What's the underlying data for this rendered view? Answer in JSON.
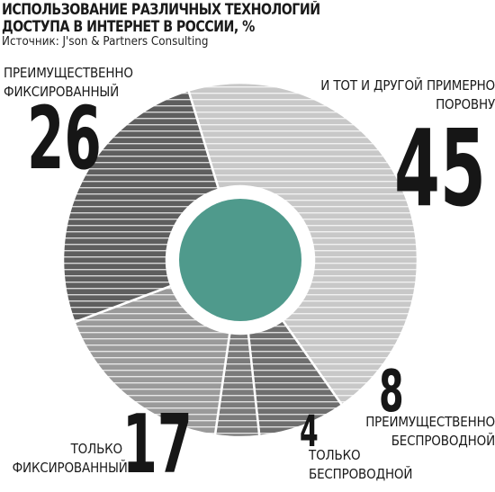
{
  "chart_data": {
    "type": "pie",
    "title": [
      "ИСПОЛЬЗОВАНИЕ РАЗЛИЧНЫХ ТЕХНОЛОГИЙ",
      "ДОСТУПА В ИНТЕРНЕТ В РОССИИ, %"
    ],
    "source": "Источник: J'son & Partners Consulting",
    "donut": true,
    "center_color": "#4f9a8c",
    "slices": [
      {
        "value": 45,
        "label": [
          "И ТОТ И ДРУГОЙ ПРИМЕРНО",
          "ПОРОВНУ"
        ],
        "fill": "#c8c8c8"
      },
      {
        "value": 8,
        "label": [
          "ПРЕИМУЩЕСТВЕННО",
          "БЕСПРОВОДНОЙ"
        ],
        "fill": "#6e6e6e"
      },
      {
        "value": 4,
        "label": [
          "ТОЛЬКО",
          "БЕСПРОВОДНОЙ"
        ],
        "fill": "#7a7a7a"
      },
      {
        "value": 17,
        "label": [
          "ТОЛЬКО",
          "ФИКСИРОВАННЫЙ"
        ],
        "fill": "#9a9a9a"
      },
      {
        "value": 26,
        "label": [
          "ПРЕИМУЩЕСТВЕННО",
          "ФИКСИРОВАННЫЙ"
        ],
        "fill": "#5e5e5e"
      }
    ]
  }
}
